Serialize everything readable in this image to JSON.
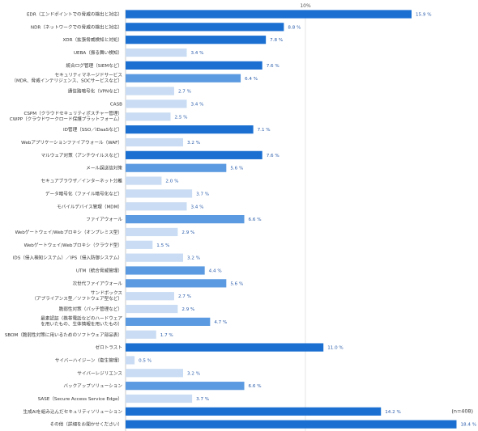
{
  "chart_data": {
    "type": "bar",
    "orientation": "horizontal",
    "reference_tick": "10%",
    "xlim": [
      0,
      20
    ],
    "grid": false,
    "note": "(n=408)",
    "colors": {
      "high": "#1a6fd1",
      "mid": "#5b9ae0",
      "low": "#c9dcf3",
      "axis": "#bbbbbb"
    },
    "categories": [
      [
        "EDR（エンドポイントでの脅威の検出と対応）"
      ],
      [
        "NDR（ネットワークでの脅威の検出と対応）"
      ],
      [
        "XDR（拡張脅威検知と対処）"
      ],
      [
        "UEBA（振る舞い検知）"
      ],
      [
        "統合ログ管理（SIEMなど）"
      ],
      [
        "セキュリティマネージドサービス",
        "（MDR、脅威インテリジェンス、SOCサービスなど）"
      ],
      [
        "通信路暗号化（VPNなど）"
      ],
      [
        "CASB"
      ],
      [
        "CSPM（クラウドセキュリティポスチャー管理）",
        "CWPP（クラウドワークロード保護プラットフォーム）"
      ],
      [
        "ID管理（SSO／IDaaSなど）"
      ],
      [
        "Webアプリケーションファイアウォール（WAF）"
      ],
      [
        "マルウェア対策（アンチウイルスなど）"
      ],
      [
        "メール誤送信対策"
      ],
      [
        "セキュアブラウザ／インターネット分離"
      ],
      [
        "データ暗号化（ファイル暗号化など）"
      ],
      [
        "モバイルデバイス管理（MDM）"
      ],
      [
        "ファイアウォール"
      ],
      [
        "Webゲートウェイ/Webプロキシ（オンプレミス型）"
      ],
      [
        "Webゲートウェイ/Webプロキシ（クラウド型）"
      ],
      [
        "IDS（侵入検知システム）／IPS（侵入防御システム）"
      ],
      [
        "UTM（統合脅威管理）"
      ],
      [
        "次世代ファイアウォール"
      ],
      [
        "サンドボックス",
        "（アプライアンス型／ソフトウェア型など）"
      ],
      [
        "脆弱性対策（パッチ管理など）"
      ],
      [
        "最素認証（携帯電話などのハードウェア",
        "を用いたもの、生体情報を用いたもの）"
      ],
      [
        "SBOM（脆弱性対策に用いるためのソフトウェア部品表）"
      ],
      [
        "ゼロトラスト"
      ],
      [
        "サイバーハイジーン（衛生管理）"
      ],
      [
        "サイバーレジリエンス"
      ],
      [
        "バックアップソリューション"
      ],
      [
        "SASE（Secure Access Service Edge）"
      ],
      [
        "生成AIを組み込んだセキュリティソリューション"
      ],
      [
        "その他（詳細をお聞かせください）"
      ]
    ],
    "values": [
      15.9,
      8.8,
      7.8,
      3.4,
      7.6,
      6.4,
      2.7,
      3.4,
      2.5,
      7.1,
      3.2,
      7.6,
      5.6,
      2.0,
      3.7,
      3.4,
      6.6,
      2.9,
      1.5,
      3.2,
      4.4,
      5.6,
      2.7,
      2.9,
      4.7,
      1.7,
      11.0,
      0.5,
      3.2,
      6.6,
      3.7,
      14.2,
      18.4
    ],
    "value_labels": [
      "15.9 %",
      "8.8 %",
      "7.8 %",
      "3.4 %",
      "7.6 %",
      "6.4 %",
      "2.7 %",
      "3.4 %",
      "2.5 %",
      "7.1 %",
      "3.2 %",
      "7.6 %",
      "5.6 %",
      "2.0 %",
      "3.7 %",
      "3.4 %",
      "6.6 %",
      "2.9 %",
      "1.5 %",
      "3.2 %",
      "4.4 %",
      "5.6 %",
      "2.7 %",
      "2.9 %",
      "4.7 %",
      "1.7 %",
      "11.0 %",
      "0.5 %",
      "3.2 %",
      "6.6 %",
      "3.7 %",
      "14.2 %",
      "18.4 %"
    ]
  }
}
